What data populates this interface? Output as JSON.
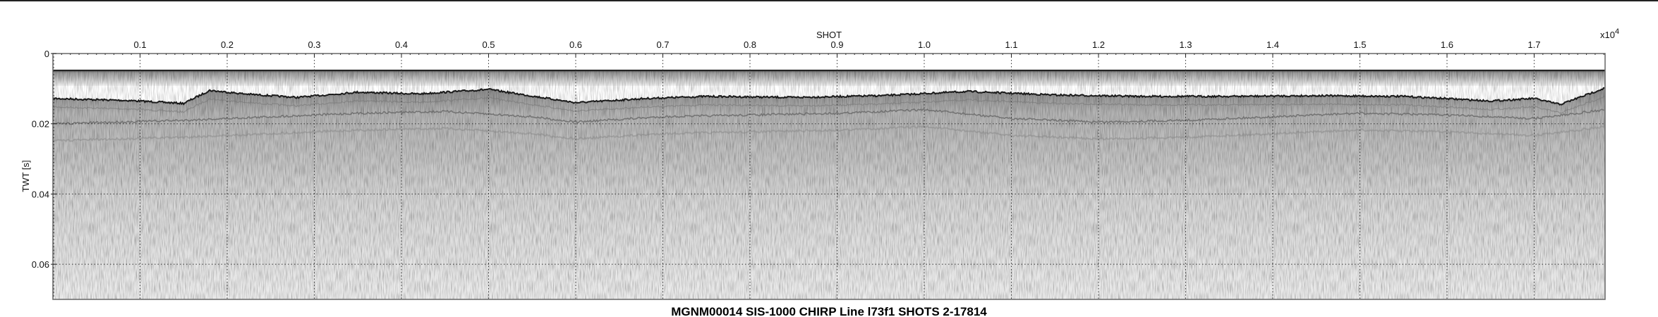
{
  "chart_data": {
    "type": "heatmap",
    "title": "MGNM00014 SIS-1000 CHIRP Line l73f1 SHOTS 2-17814",
    "xlabel": "SHOT",
    "ylabel": "TWT [s]",
    "x_multiplier": "x10",
    "x_multiplier_exp": "4",
    "xlim": [
      2,
      17814
    ],
    "ylim": [
      0,
      0.07
    ],
    "y_inverted": true,
    "colormap": "grayscale",
    "grid": true,
    "x_ticks": [
      0.1,
      0.2,
      0.3,
      0.4,
      0.5,
      0.6,
      0.7,
      0.8,
      0.9,
      1.0,
      1.1,
      1.2,
      1.3,
      1.4,
      1.5,
      1.6,
      1.7
    ],
    "x_tick_labels": [
      "0.1",
      "0.2",
      "0.3",
      "0.4",
      "0.5",
      "0.6",
      "0.7",
      "0.8",
      "0.9",
      "1.0",
      "1.1",
      "1.2",
      "1.3",
      "1.4",
      "1.5",
      "1.6",
      "1.7"
    ],
    "y_ticks": [
      0,
      0.02,
      0.04,
      0.06
    ],
    "y_tick_labels": [
      "0",
      "0.02",
      "0.04",
      "0.06"
    ],
    "surface_reflector_twt": 0.0048,
    "seafloor_horizon": {
      "shot": [
        2,
        900,
        1500,
        1800,
        2200,
        2800,
        3500,
        4200,
        5000,
        6000,
        6800,
        7500,
        8500,
        9500,
        10500,
        11500,
        12500,
        13500,
        14500,
        15500,
        16500,
        17000,
        17300,
        17814
      ],
      "twt": [
        0.0128,
        0.0134,
        0.0142,
        0.0105,
        0.0115,
        0.0125,
        0.011,
        0.0115,
        0.0102,
        0.014,
        0.0128,
        0.0122,
        0.0125,
        0.012,
        0.0108,
        0.0118,
        0.0122,
        0.0122,
        0.012,
        0.0122,
        0.0135,
        0.0128,
        0.0145,
        0.0098
      ]
    },
    "subbottom_horizon": {
      "shot": [
        2,
        1500,
        2500,
        3500,
        4500,
        5500,
        6000,
        7000,
        8000,
        9000,
        10000,
        11000,
        12000,
        13000,
        14000,
        15000,
        16000,
        17000,
        17814
      ],
      "twt": [
        0.02,
        0.019,
        0.018,
        0.017,
        0.0165,
        0.018,
        0.0195,
        0.018,
        0.0175,
        0.017,
        0.016,
        0.0185,
        0.0195,
        0.019,
        0.018,
        0.017,
        0.0175,
        0.0185,
        0.016
      ]
    }
  }
}
